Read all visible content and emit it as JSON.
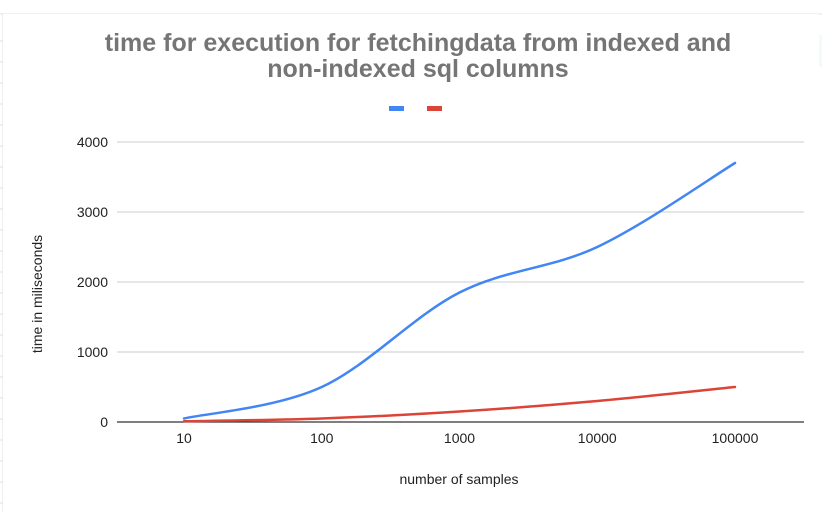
{
  "chart_data": {
    "type": "line",
    "title_lines": [
      "time for execution for fetchingdata from indexed and",
      "non-indexed sql columns"
    ],
    "xlabel": "number of samples",
    "ylabel": "time in miliseconds",
    "x_scale": "log",
    "x": [
      10,
      100,
      1000,
      10000,
      100000
    ],
    "x_tick_labels": [
      "10",
      "100",
      "1000",
      "10000",
      "100000"
    ],
    "ylim": [
      0,
      4000
    ],
    "y_ticks": [
      0,
      1000,
      2000,
      3000,
      4000
    ],
    "y_tick_labels": [
      "0",
      "1000",
      "2000",
      "3000",
      "4000"
    ],
    "grid": true,
    "legend_position": "top",
    "series": [
      {
        "color": "#4285f4",
        "values": [
          50,
          500,
          1850,
          2500,
          3700
        ]
      },
      {
        "color": "#db4437",
        "values": [
          10,
          50,
          150,
          300,
          500
        ]
      }
    ]
  }
}
